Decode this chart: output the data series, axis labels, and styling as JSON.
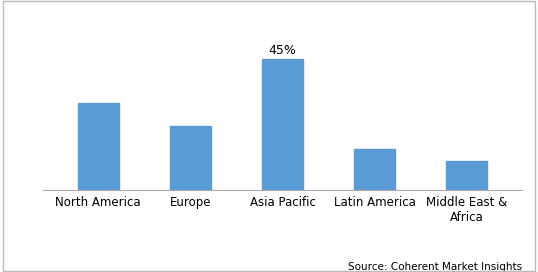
{
  "categories": [
    "North America",
    "Europe",
    "Asia Pacific",
    "Latin America",
    "Middle East &\nAfrica"
  ],
  "values": [
    30,
    22,
    45,
    14,
    10
  ],
  "bar_color": "#5b9bd5",
  "annotation_bar": 2,
  "annotation_text": "45%",
  "annotation_fontsize": 9,
  "source_text": "Source: Coherent Market Insights",
  "source_fontsize": 7.5,
  "background_color": "#ffffff",
  "ylim": [
    0,
    54
  ],
  "bar_width": 0.45,
  "tick_fontsize": 8.5,
  "border_color": "#aaaaaa",
  "fig_border_color": "#bbbbbb"
}
